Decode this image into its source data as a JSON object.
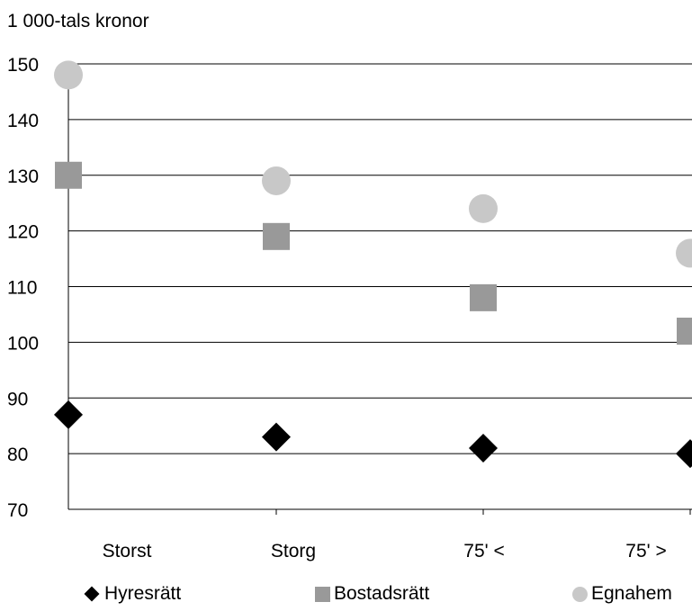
{
  "chart_data": {
    "type": "scatter",
    "unit_label": "1 000-tals kronor",
    "categories": [
      "Storst",
      "Storg",
      "75' <",
      "75' >"
    ],
    "ylim": [
      70,
      150
    ],
    "yticks": [
      70,
      80,
      90,
      100,
      110,
      120,
      130,
      140,
      150
    ],
    "grid": true,
    "legend_position": "bottom",
    "series": [
      {
        "name": "Hyresrätt",
        "marker": "diamond",
        "color": "#000000",
        "values": [
          87,
          83,
          81,
          80
        ]
      },
      {
        "name": "Bostadsrätt",
        "marker": "square",
        "color": "#999999",
        "values": [
          130,
          119,
          108,
          102
        ]
      },
      {
        "name": "Egnahem",
        "marker": "circle",
        "color": "#c8c8c8",
        "values": [
          148,
          129,
          124,
          116
        ]
      }
    ]
  }
}
